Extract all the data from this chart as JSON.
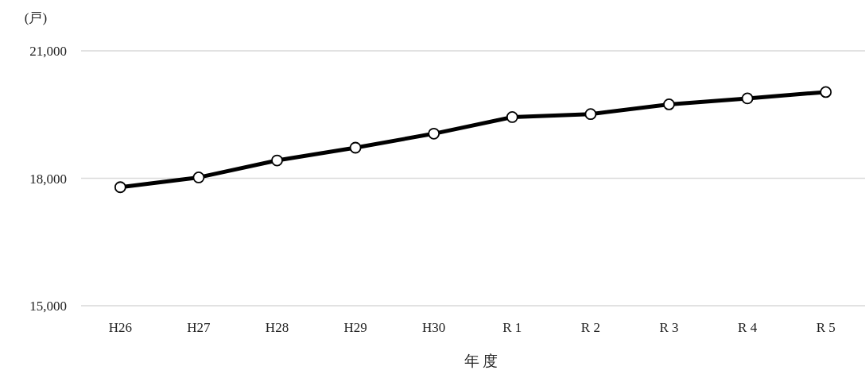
{
  "chart_data": {
    "type": "line",
    "ylabel": "(戸)",
    "xlabel": "年 度",
    "categories": [
      "H26",
      "H27",
      "H28",
      "H29",
      "H30",
      "R 1",
      "R 2",
      "R 3",
      "R 4",
      "R 5"
    ],
    "series": [
      {
        "color": "#000000",
        "values": [
          17790,
          18020,
          18420,
          18720,
          19050,
          19440,
          19510,
          19740,
          19880,
          20030
        ]
      }
    ],
    "ylim": [
      15000,
      21000
    ],
    "yticks": [
      {
        "value": 15000,
        "label": "15,000"
      },
      {
        "value": 18000,
        "label": "18,000"
      },
      {
        "value": 21000,
        "label": "21,000"
      }
    ],
    "grid": "y",
    "marker": "circle",
    "line_style": "solid"
  }
}
